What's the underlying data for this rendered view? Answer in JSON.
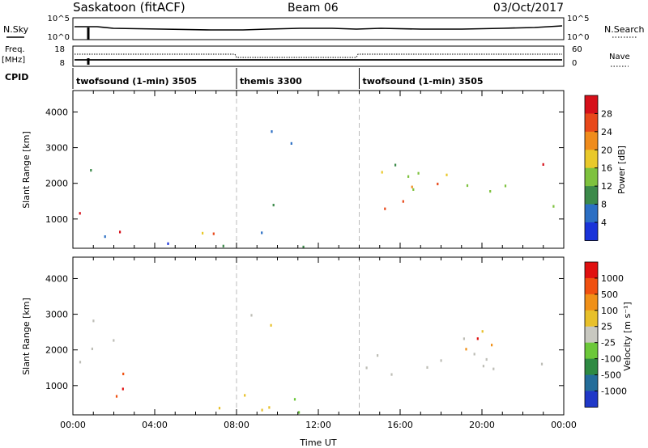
{
  "header": {
    "station": "Saskatoon (fitACF)",
    "beam": "Beam 06",
    "date": "03/Oct/2017"
  },
  "panels": {
    "sky_label": "N.Sky",
    "search_label": "N.Search",
    "freq_label": "Freq.",
    "freq_unit": "[MHz]",
    "nave_label": "Nave",
    "cpid_label": "CPID",
    "sky_ticks": [
      "10^5",
      "10^0"
    ],
    "search_ticks": [
      "10^5",
      "10^0"
    ],
    "freq_ticks": [
      "18",
      "8"
    ],
    "nave_ticks": [
      "60",
      "0"
    ]
  },
  "cpid_segments": [
    {
      "label": "twofsound (1-min) 3505",
      "start_hour": 0,
      "end_hour": 8
    },
    {
      "label": "themis 3300",
      "start_hour": 8,
      "end_hour": 14
    },
    {
      "label": "twofsound (1-min) 3505",
      "start_hour": 14,
      "end_hour": 24
    }
  ],
  "colors": {
    "power": [
      "#1a33d9",
      "#2c6fc4",
      "#3c8a4a",
      "#7ec23e",
      "#e9c92b",
      "#f08c1c",
      "#e8481a",
      "#d6101a"
    ],
    "velocity": [
      "#2038c8",
      "#246d9a",
      "#2e8a42",
      "#6cc83a",
      "#c8c8c0",
      "#e8c02a",
      "#f09018",
      "#f05010",
      "#e01010"
    ],
    "ground_scatter": "#bdbdb6"
  },
  "chart_data": [
    {
      "type": "heatmap",
      "title": "Power",
      "xlabel": "",
      "ylabel": "Slant Range [km]",
      "xlim": [
        0,
        24
      ],
      "ylim": [
        180,
        4600
      ],
      "x_ticks": [],
      "y_ticks": [
        "1000",
        "2000",
        "3000",
        "4000"
      ],
      "colorbar_label": "Power [dB]",
      "colorbar_ticks": [
        "4",
        "8",
        "12",
        "16",
        "20",
        "24",
        "28"
      ],
      "features": [
        {
          "t0": 0.3,
          "t1": 2.0,
          "r0": 950,
          "r1": 1700,
          "level": "high"
        },
        {
          "t0": 0.2,
          "t1": 1.0,
          "r0": 2300,
          "r1": 2900,
          "level": "low"
        },
        {
          "t0": 1.5,
          "t1": 7.5,
          "r0": 180,
          "r1": 900,
          "level": "mixed"
        },
        {
          "t0": 6.5,
          "t1": 13.5,
          "r0": 180,
          "r1": 600,
          "level": "low"
        },
        {
          "t0": 8.3,
          "t1": 11.2,
          "r0": 2700,
          "r1": 3450,
          "level": "low"
        },
        {
          "t0": 7.5,
          "t1": 10.5,
          "r0": 1100,
          "r1": 1400,
          "level": "low"
        },
        {
          "t0": 14.0,
          "t1": 24.0,
          "r0": 1200,
          "r1": 2500,
          "level": "high"
        },
        {
          "t0": 15.5,
          "t1": 17.2,
          "r0": 2400,
          "r1": 2700,
          "level": "low"
        },
        {
          "t0": 21.5,
          "t1": 23.0,
          "r0": 2800,
          "r1": 3000,
          "level": "low"
        }
      ]
    },
    {
      "type": "heatmap",
      "title": "Velocity",
      "xlabel": "Time UT",
      "ylabel": "Slant Range [km]",
      "xlim": [
        0,
        24
      ],
      "ylim": [
        180,
        4600
      ],
      "x_ticks": [
        "00:00",
        "04:00",
        "08:00",
        "12:00",
        "16:00",
        "20:00",
        "00:00"
      ],
      "y_ticks": [
        "1000",
        "2000",
        "3000",
        "4000"
      ],
      "colorbar_label": "Velocity [m s⁻¹]",
      "colorbar_ticks": [
        "1000",
        "500",
        "100",
        "25",
        "-25",
        "-100",
        "-500",
        "-1000"
      ],
      "features": [
        {
          "t0": 0.2,
          "t1": 2.5,
          "r0": 900,
          "r1": 2800,
          "level": "ground"
        },
        {
          "t0": 2.0,
          "t1": 5.0,
          "r0": 300,
          "r1": 900,
          "level": "negative"
        },
        {
          "t0": 6.0,
          "t1": 13.5,
          "r0": 180,
          "r1": 900,
          "level": "mixed"
        },
        {
          "t0": 8.5,
          "t1": 11.0,
          "r0": 2600,
          "r1": 3450,
          "level": "ground"
        },
        {
          "t0": 14.0,
          "t1": 24.0,
          "r0": 1200,
          "r1": 2300,
          "level": "ground"
        },
        {
          "t0": 19.5,
          "t1": 24.0,
          "r0": 2000,
          "r1": 2500,
          "level": "negative"
        }
      ]
    }
  ]
}
